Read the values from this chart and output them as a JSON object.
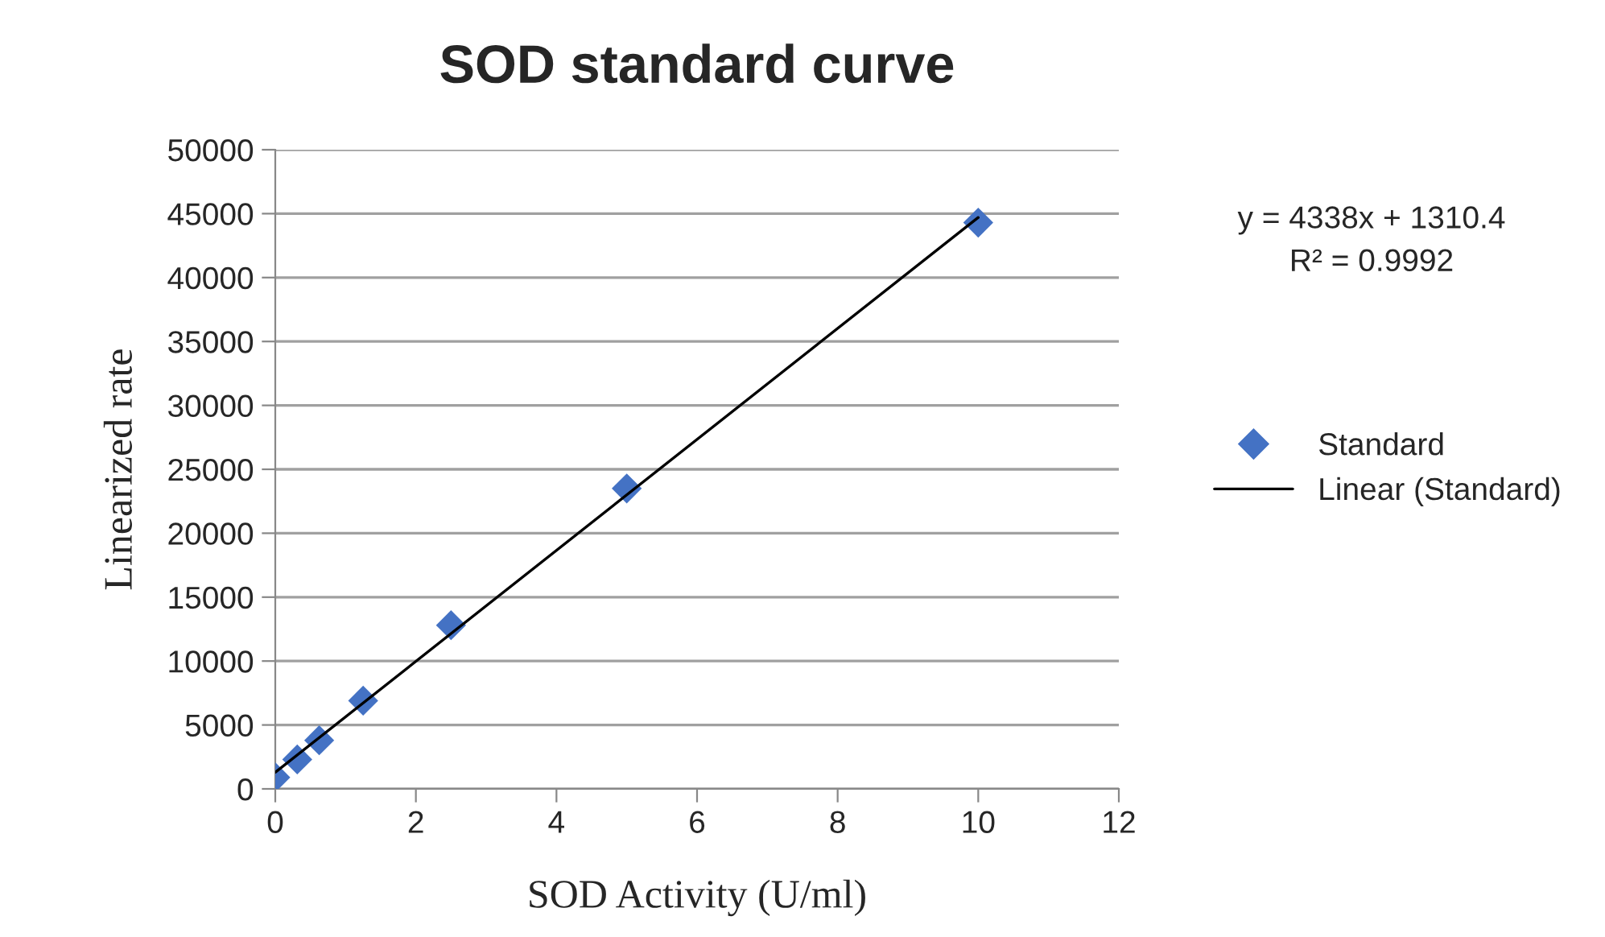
{
  "chart_data": {
    "type": "scatter",
    "title": "SOD standard curve",
    "xlabel": "SOD Activity (U/ml)",
    "ylabel": "Linearized rate",
    "series": [
      {
        "name": "Standard",
        "color": "#4472c4",
        "marker": "diamond",
        "x": [
          0,
          0.3125,
          0.625,
          1.25,
          2.5,
          5,
          10
        ],
        "values": [
          900,
          2300,
          3800,
          6900,
          12800,
          23500,
          44300
        ]
      },
      {
        "name": "Linear (Standard)",
        "type": "line",
        "color": "#000000",
        "marker": "none",
        "line_style": "solid",
        "x": [
          0,
          10
        ],
        "values": [
          1300,
          44700
        ]
      }
    ],
    "annotations": [
      "y = 4338x + 1310.4\nR² = 0.9992"
    ],
    "xlim": [
      0,
      12
    ],
    "xticks": [
      0,
      2,
      4,
      6,
      8,
      10,
      12
    ],
    "ylim": [
      0,
      50000
    ],
    "yticks": [
      0,
      5000,
      10000,
      15000,
      20000,
      25000,
      30000,
      35000,
      40000,
      45000,
      50000
    ],
    "grid": "y",
    "legend": "right"
  }
}
